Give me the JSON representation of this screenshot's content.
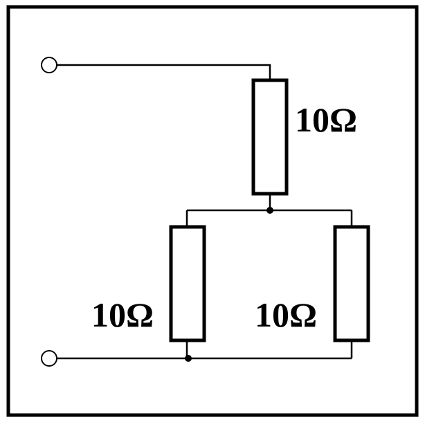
{
  "circuit": {
    "resistor_top": {
      "label": "10Ω"
    },
    "resistor_bottom_left": {
      "label": "10Ω"
    },
    "resistor_bottom_right": {
      "label": "10Ω"
    }
  }
}
